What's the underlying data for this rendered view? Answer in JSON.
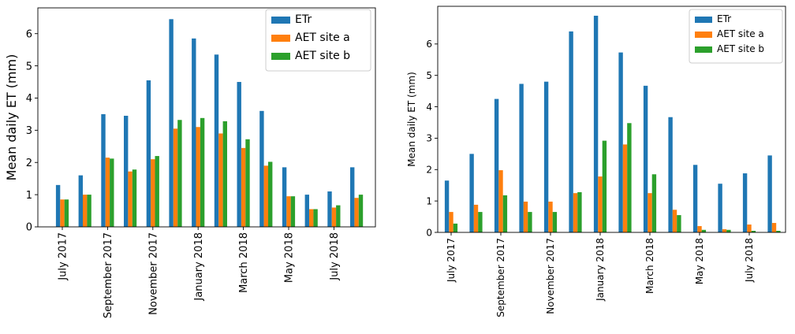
{
  "colors": {
    "ETr": "#1f77b4",
    "AET site a": "#ff7f0e",
    "AET site b": "#2ca02c",
    "axis": "#000000",
    "legend_border": "#cccccc"
  },
  "chart_data": [
    {
      "type": "bar",
      "title": "",
      "xlabel": "",
      "ylabel": "Mean daily ET (mm)",
      "ylim": [
        0,
        6.8
      ],
      "yticks": [
        0,
        1,
        2,
        3,
        4,
        5,
        6
      ],
      "grid": false,
      "legend_position": "top-right",
      "categories": [
        "2017-07",
        "2017-08",
        "2017-09",
        "2017-10",
        "2017-11",
        "2017-12",
        "2018-01",
        "2018-02",
        "2018-03",
        "2018-04",
        "2018-05",
        "2018-06",
        "2018-07",
        "2018-08"
      ],
      "tick_labels": [
        {
          "index": 0,
          "label": "July 2017"
        },
        {
          "index": 2,
          "label": "September 2017"
        },
        {
          "index": 4,
          "label": "November 2017"
        },
        {
          "index": 6,
          "label": "January 2018"
        },
        {
          "index": 8,
          "label": "March 2018"
        },
        {
          "index": 10,
          "label": "May 2018"
        },
        {
          "index": 12,
          "label": "July 2018"
        }
      ],
      "series": [
        {
          "name": "ETr",
          "values": [
            1.3,
            1.6,
            3.5,
            3.45,
            4.55,
            6.45,
            5.85,
            5.35,
            4.5,
            3.6,
            1.85,
            1.0,
            1.1,
            1.85
          ]
        },
        {
          "name": "AET site a",
          "values": [
            0.85,
            1.0,
            2.15,
            1.72,
            2.1,
            3.05,
            3.1,
            2.9,
            2.45,
            1.9,
            0.95,
            0.55,
            0.6,
            0.9
          ]
        },
        {
          "name": "AET site b",
          "values": [
            0.85,
            1.0,
            2.12,
            1.78,
            2.2,
            3.32,
            3.38,
            3.28,
            2.72,
            2.02,
            0.95,
            0.55,
            0.67,
            1.0
          ]
        }
      ]
    },
    {
      "type": "bar",
      "title": "",
      "xlabel": "",
      "ylabel": "Mean daily ET (mm)",
      "ylim": [
        0,
        7.2
      ],
      "yticks": [
        0,
        1,
        2,
        3,
        4,
        5,
        6
      ],
      "grid": false,
      "legend_position": "top-right",
      "categories": [
        "2017-07",
        "2017-08",
        "2017-09",
        "2017-10",
        "2017-11",
        "2017-12",
        "2018-01",
        "2018-02",
        "2018-03",
        "2018-04",
        "2018-05",
        "2018-06",
        "2018-07",
        "2018-08"
      ],
      "tick_labels": [
        {
          "index": 0,
          "label": "July 2017"
        },
        {
          "index": 2,
          "label": "September 2017"
        },
        {
          "index": 4,
          "label": "November 2017"
        },
        {
          "index": 6,
          "label": "January 2018"
        },
        {
          "index": 8,
          "label": "March 2018"
        },
        {
          "index": 10,
          "label": "May 2018"
        },
        {
          "index": 12,
          "label": "July 2018"
        }
      ],
      "series": [
        {
          "name": "ETr",
          "values": [
            1.65,
            2.5,
            4.25,
            4.73,
            4.8,
            6.4,
            6.9,
            5.73,
            4.67,
            3.67,
            2.15,
            1.55,
            1.88,
            2.45
          ]
        },
        {
          "name": "AET site a",
          "values": [
            0.65,
            0.88,
            1.98,
            0.98,
            0.98,
            1.25,
            1.78,
            2.8,
            1.25,
            0.72,
            0.2,
            0.1,
            0.25,
            0.3
          ]
        },
        {
          "name": "AET site b",
          "values": [
            0.28,
            0.65,
            1.18,
            0.65,
            0.65,
            1.28,
            2.92,
            3.48,
            1.85,
            0.55,
            0.08,
            0.08,
            0.05,
            0.05
          ]
        }
      ]
    }
  ]
}
